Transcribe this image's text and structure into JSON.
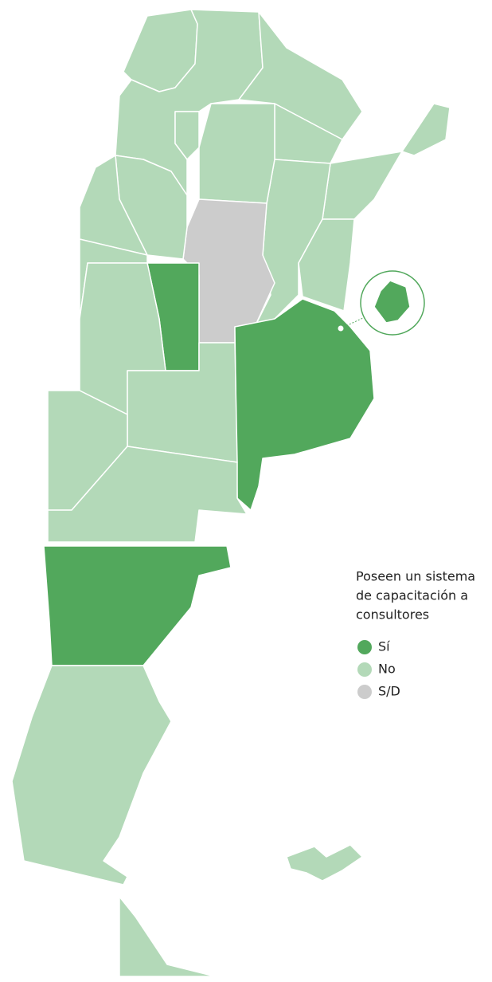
{
  "legend": {
    "title": [
      "Poseen un sistema",
      "de capacitación a",
      "consultores"
    ],
    "items": [
      {
        "label": "Sí",
        "color": "#52a85c"
      },
      {
        "label": "No",
        "color": "#b3d9b8"
      },
      {
        "label": "S/D",
        "color": "#cccccc"
      }
    ]
  }
}
